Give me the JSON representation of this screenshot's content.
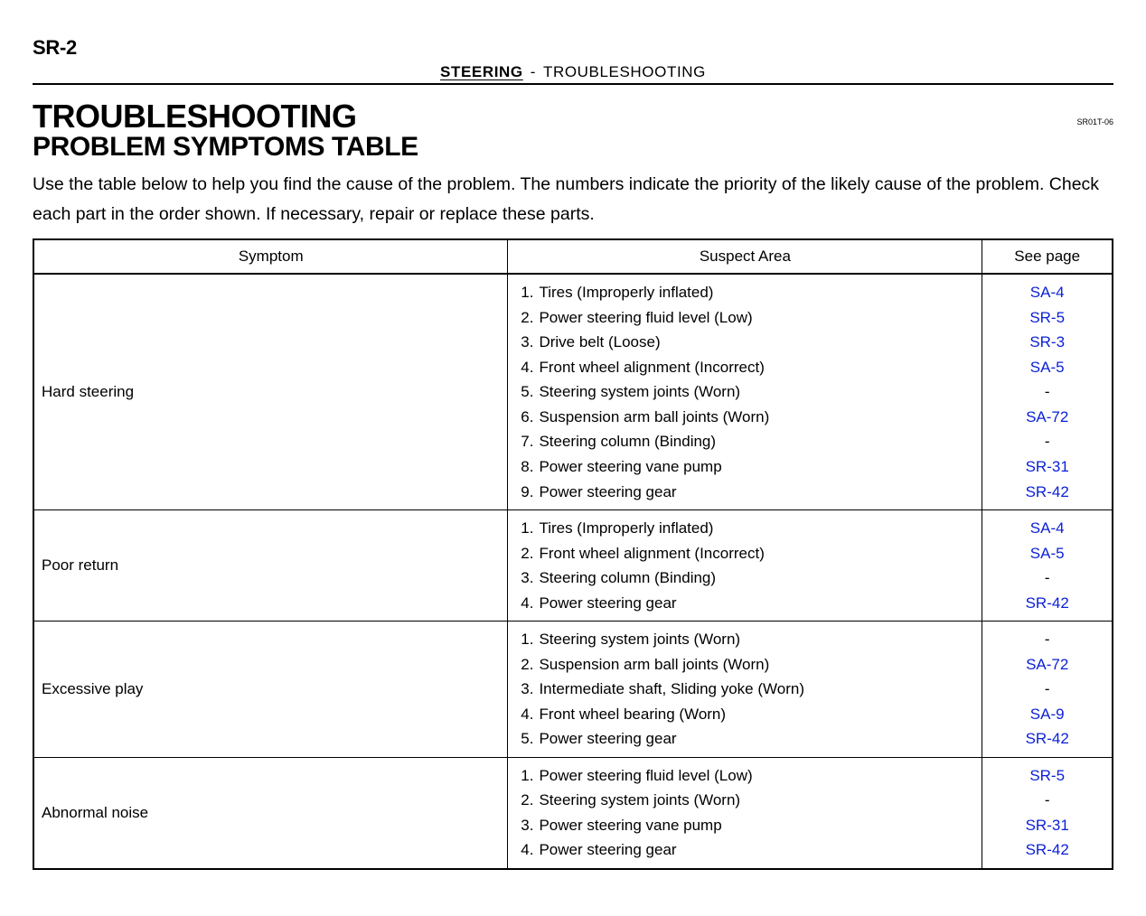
{
  "header": {
    "page_code": "SR-2",
    "section": "STEERING",
    "separator": "-",
    "subsection": "TROUBLESHOOTING",
    "doc_code": "SR01T-06"
  },
  "titles": {
    "main": "TROUBLESHOOTING",
    "sub": "PROBLEM SYMPTOMS TABLE"
  },
  "intro": "Use the table below to help you find the cause of the problem. The numbers indicate the priority of the likely cause of the problem. Check each part in the order shown. If necessary, repair or replace these parts.",
  "table": {
    "columns": [
      "Symptom",
      "Suspect Area",
      "See page"
    ],
    "rows": [
      {
        "symptom": "Hard steering",
        "suspects": [
          {
            "n": "1.",
            "text": "Tires (Improperly inflated)",
            "page": "SA-4",
            "link": true
          },
          {
            "n": "2.",
            "text": "Power steering fluid level (Low)",
            "page": "SR-5",
            "link": true
          },
          {
            "n": "3.",
            "text": "Drive belt (Loose)",
            "page": "SR-3",
            "link": true
          },
          {
            "n": "4.",
            "text": "Front wheel alignment (Incorrect)",
            "page": "SA-5",
            "link": true
          },
          {
            "n": "5.",
            "text": "Steering system joints (Worn)",
            "page": "-",
            "link": false
          },
          {
            "n": "6.",
            "text": "Suspension arm ball joints (Worn)",
            "page": "SA-72",
            "link": true
          },
          {
            "n": "7.",
            "text": "Steering column (Binding)",
            "page": "-",
            "link": false
          },
          {
            "n": "8.",
            "text": "Power steering vane pump",
            "page": "SR-31",
            "link": true
          },
          {
            "n": "9.",
            "text": "Power steering gear",
            "page": "SR-42",
            "link": true
          }
        ]
      },
      {
        "symptom": "Poor return",
        "suspects": [
          {
            "n": "1.",
            "text": "Tires (Improperly inflated)",
            "page": "SA-4",
            "link": true
          },
          {
            "n": "2.",
            "text": "Front wheel alignment (Incorrect)",
            "page": "SA-5",
            "link": true
          },
          {
            "n": "3.",
            "text": "Steering column (Binding)",
            "page": "-",
            "link": false
          },
          {
            "n": "4.",
            "text": "Power steering gear",
            "page": "SR-42",
            "link": true
          }
        ]
      },
      {
        "symptom": "Excessive play",
        "suspects": [
          {
            "n": "1.",
            "text": "Steering system joints (Worn)",
            "page": "-",
            "link": false
          },
          {
            "n": "2.",
            "text": "Suspension arm ball joints (Worn)",
            "page": "SA-72",
            "link": true
          },
          {
            "n": "3.",
            "text": "Intermediate shaft, Sliding yoke (Worn)",
            "page": "-",
            "link": false
          },
          {
            "n": "4.",
            "text": "Front wheel bearing (Worn)",
            "page": "SA-9",
            "link": true
          },
          {
            "n": "5.",
            "text": "Power steering gear",
            "page": "SR-42",
            "link": true
          }
        ]
      },
      {
        "symptom": "Abnormal noise",
        "suspects": [
          {
            "n": "1.",
            "text": "Power steering fluid level (Low)",
            "page": "SR-5",
            "link": true
          },
          {
            "n": "2.",
            "text": "Steering system joints (Worn)",
            "page": "-",
            "link": false
          },
          {
            "n": "3.",
            "text": "Power steering vane pump",
            "page": "SR-31",
            "link": true
          },
          {
            "n": "4.",
            "text": "Power steering gear",
            "page": "SR-42",
            "link": true
          }
        ]
      }
    ]
  },
  "colors": {
    "link": "#0a1fd6",
    "text": "#000000",
    "background": "#ffffff",
    "border": "#000000"
  }
}
